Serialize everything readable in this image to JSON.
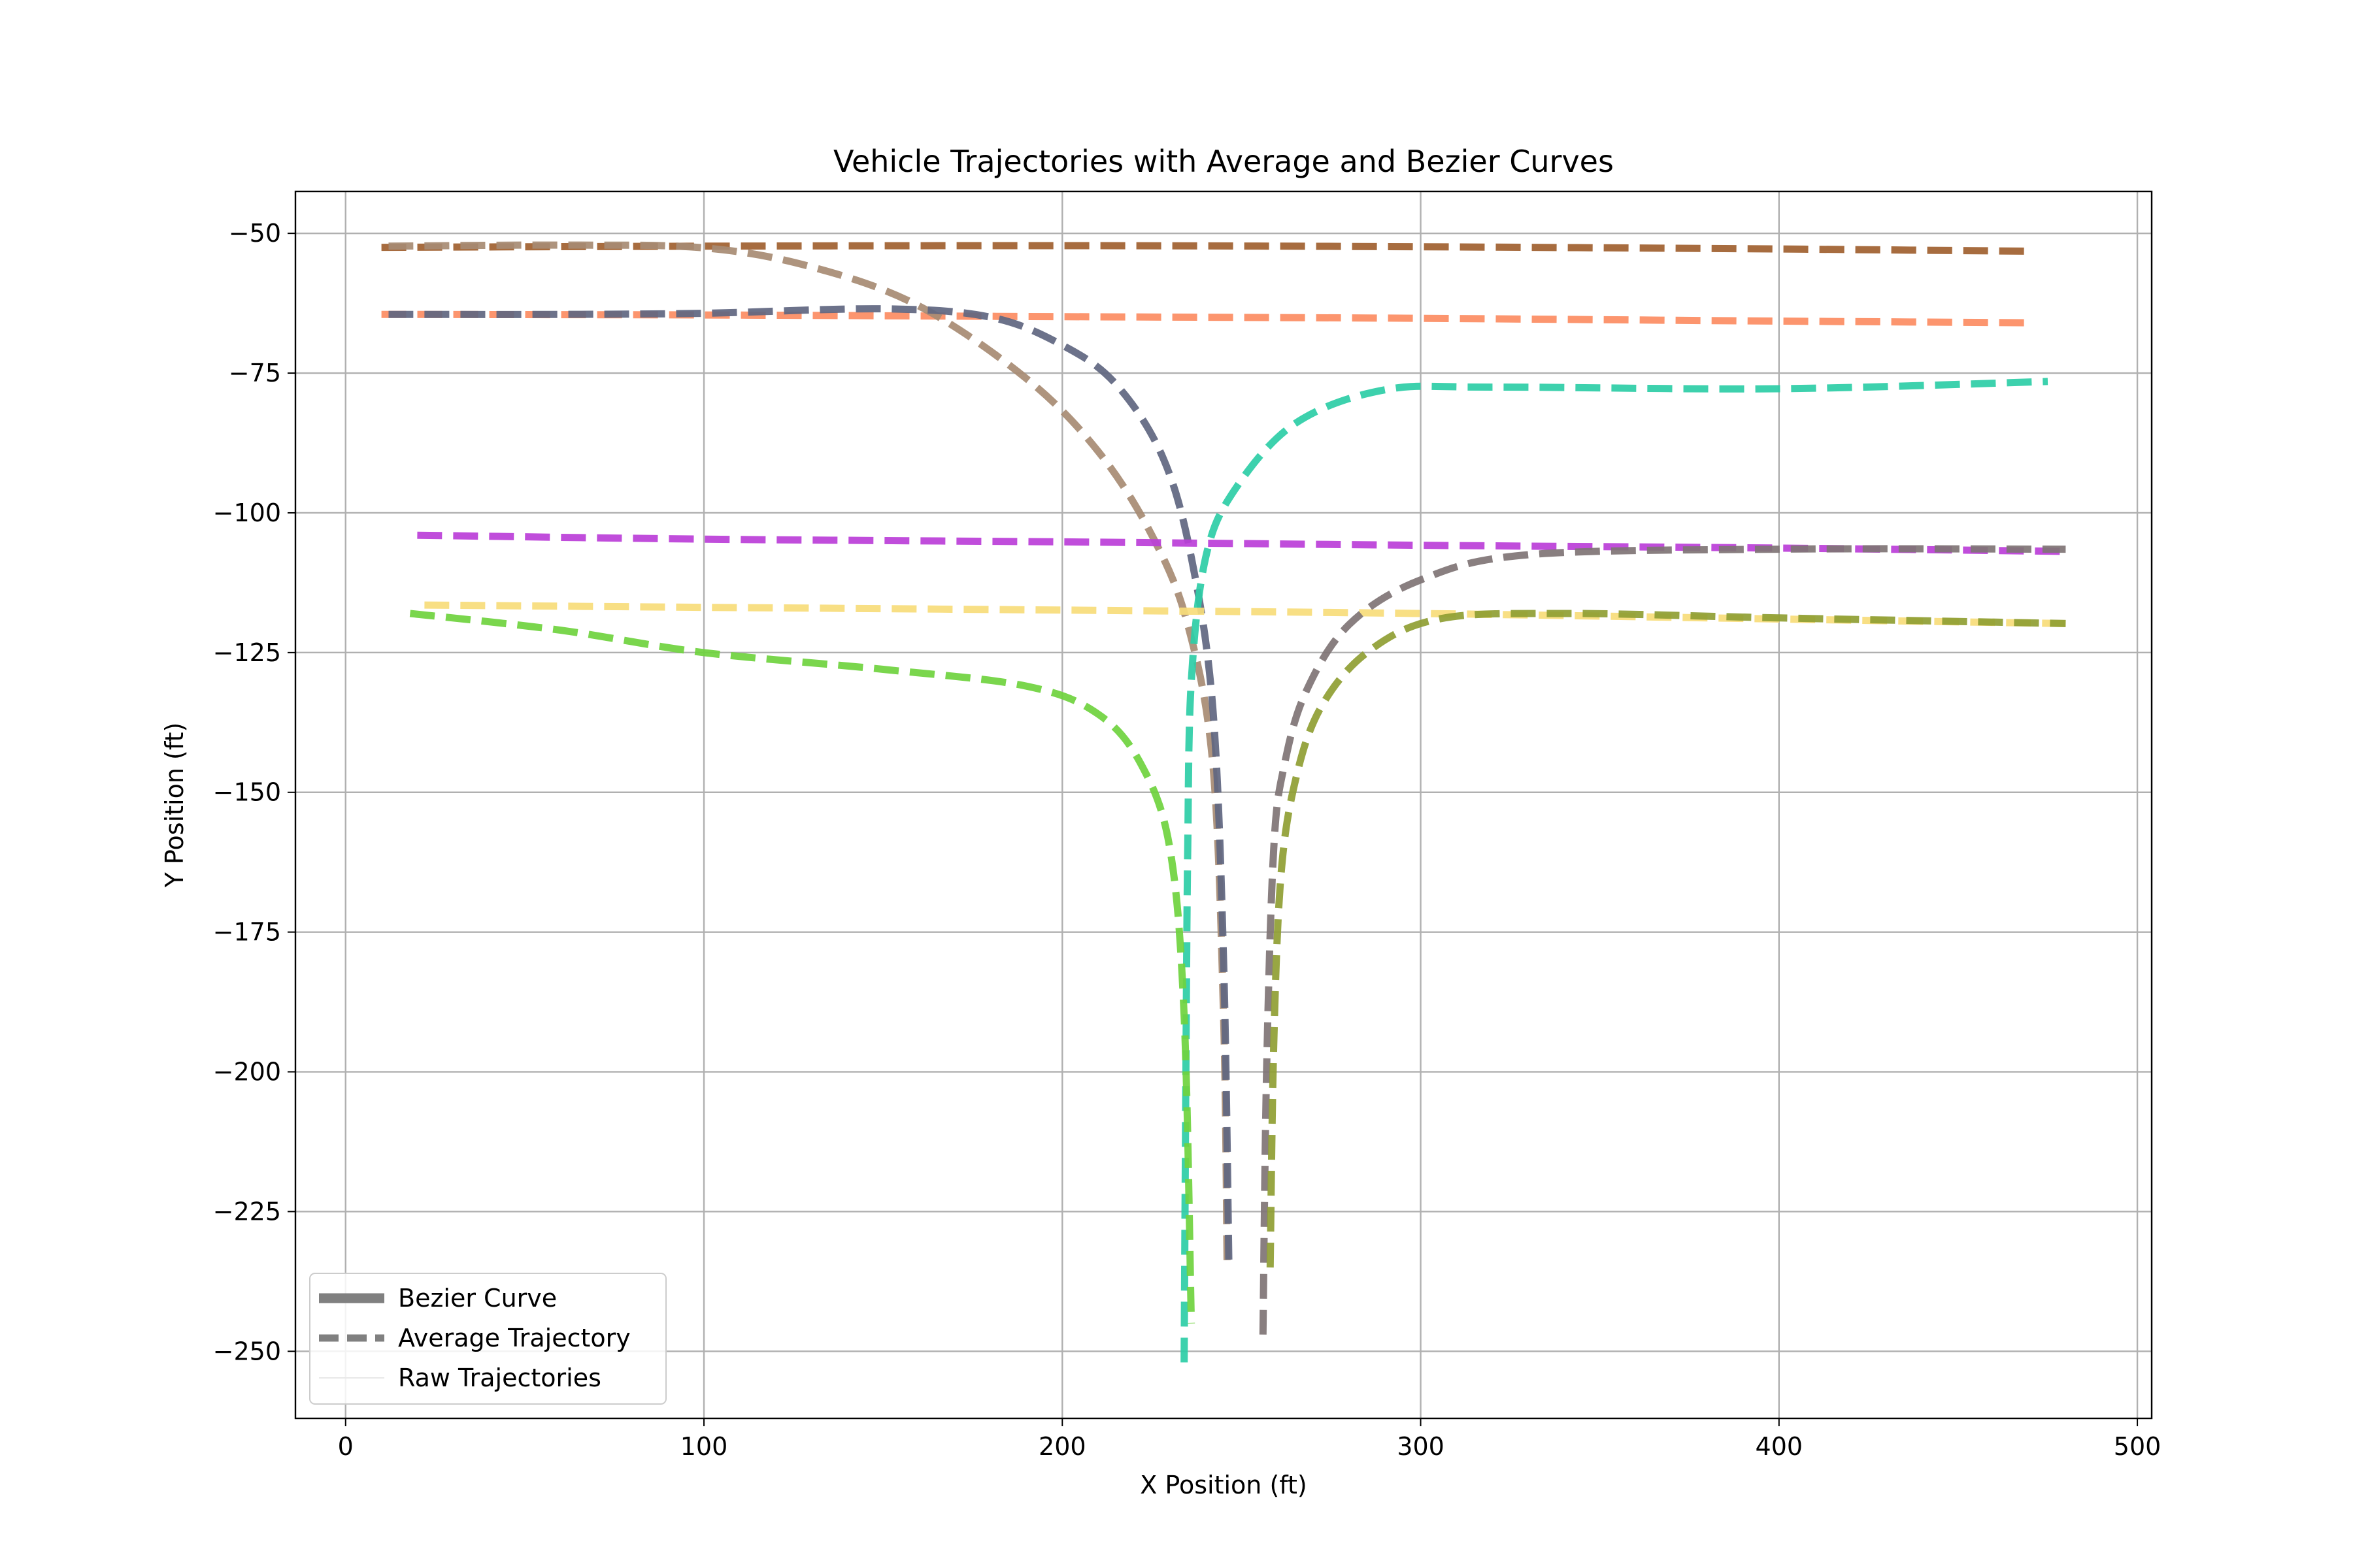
{
  "chart_data": {
    "type": "line",
    "title": "Vehicle Trajectories with Average and Bezier Curves",
    "xlabel": "X Position (ft)",
    "ylabel": "Y Position (ft)",
    "xlim": [
      -14,
      504
    ],
    "ylim": [
      -262,
      -42.5
    ],
    "xticks": [
      0,
      100,
      200,
      300,
      400,
      500
    ],
    "yticks": [
      -50,
      -75,
      -100,
      -125,
      -150,
      -175,
      -200,
      -225,
      -250
    ],
    "xtick_labels": [
      "0",
      "100",
      "200",
      "300",
      "400",
      "500"
    ],
    "ytick_labels": [
      "−50",
      "−75",
      "−100",
      "−125",
      "−150",
      "−175",
      "−200",
      "−225",
      "−250"
    ],
    "grid": true,
    "legend": {
      "placement": "lower-left",
      "entries": [
        {
          "label": "Bezier Curve",
          "style": "solid",
          "color": "#808080"
        },
        {
          "label": "Average Trajectory",
          "style": "dashed",
          "color": "#808080"
        },
        {
          "label": "Raw Trajectories",
          "style": "thin",
          "color": "#e8e8e8"
        }
      ]
    },
    "series": [
      {
        "color": "#a0602f",
        "x": [
          10,
          100,
          200,
          300,
          400,
          470
        ],
        "y": [
          -52.5,
          -52.3,
          -52.2,
          -52.4,
          -52.8,
          -53.2
        ]
      },
      {
        "color": "#fc8c62",
        "x": [
          10,
          100,
          200,
          300,
          400,
          470
        ],
        "y": [
          -64.5,
          -64.6,
          -64.9,
          -65.2,
          -65.7,
          -66
        ]
      },
      {
        "color": "#a78b73",
        "x": [
          12,
          60,
          100,
          130,
          160,
          190,
          210,
          225,
          235,
          242,
          245,
          246
        ],
        "y": [
          -52.3,
          -52.1,
          -52.6,
          -56,
          -63,
          -76,
          -89,
          -104,
          -120,
          -145,
          -190,
          -235
        ]
      },
      {
        "color": "#5f6680",
        "x": [
          12,
          60,
          100,
          150,
          180,
          200,
          215,
          228,
          236,
          242,
          245,
          246.5
        ],
        "y": [
          -64.5,
          -64.5,
          -64.3,
          -63.5,
          -65,
          -70,
          -77,
          -90,
          -108,
          -135,
          -180,
          -235
        ]
      },
      {
        "color": "#2dcda6",
        "x": [
          234,
          234.5,
          235,
          236,
          240,
          248,
          265,
          290,
          320,
          400,
          475
        ],
        "y": [
          -252,
          -200,
          -160,
          -130,
          -108,
          -96,
          -84,
          -78,
          -77.5,
          -77.8,
          -76.5
        ]
      },
      {
        "color": "#bb3ed8",
        "x": [
          20,
          100,
          200,
          300,
          400,
          480
        ],
        "y": [
          -104,
          -104.7,
          -105.2,
          -105.8,
          -106.3,
          -106.9
        ]
      },
      {
        "color": "#f7dc7a",
        "x": [
          22,
          100,
          200,
          300,
          400,
          480
        ],
        "y": [
          -116.5,
          -116.9,
          -117.4,
          -118,
          -119,
          -119.8
        ]
      },
      {
        "color": "#6fd23e",
        "x": [
          18,
          60,
          100,
          150,
          190,
          210,
          222,
          230,
          234,
          236
        ],
        "y": [
          -118,
          -121,
          -125,
          -128,
          -131,
          -136,
          -145,
          -160,
          -190,
          -245
        ]
      },
      {
        "color": "#7f7475",
        "x": [
          256,
          257,
          259,
          262,
          268,
          280,
          300,
          330,
          400,
          480
        ],
        "y": [
          -247,
          -200,
          -160,
          -145,
          -132,
          -120,
          -112,
          -107.5,
          -106.5,
          -106.5
        ]
      },
      {
        "color": "#8f9e33",
        "x": [
          258,
          259,
          261,
          265,
          272,
          285,
          305,
          340,
          400,
          480
        ],
        "y": [
          -235,
          -195,
          -165,
          -148,
          -135,
          -125,
          -119,
          -118,
          -118.8,
          -119.8
        ]
      }
    ]
  }
}
